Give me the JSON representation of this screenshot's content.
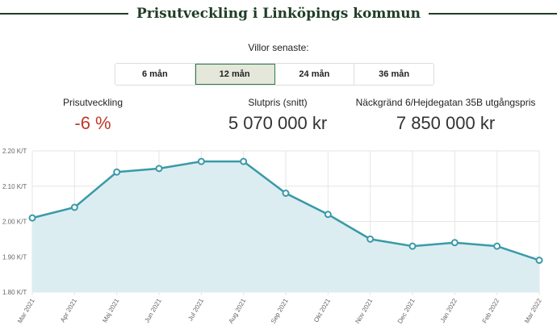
{
  "header": {
    "title": "Prisutveckling i Linköpings kommun"
  },
  "filter": {
    "label": "Villor senaste:",
    "tabs": [
      {
        "label": "6 mån",
        "active": false
      },
      {
        "label": "12 mån",
        "active": true
      },
      {
        "label": "24 mån",
        "active": false
      },
      {
        "label": "36 mån",
        "active": false
      }
    ]
  },
  "stats": [
    {
      "label": "Prisutveckling",
      "value": "-6 %"
    },
    {
      "label": "Slutpris (snitt)",
      "value": "5 070 000 kr"
    },
    {
      "label": "Näckgränd 6/Hejdegatan 35B utgångspris",
      "value": "7 850 000 kr"
    }
  ],
  "colors": {
    "line": "#3a9aa8",
    "fill": "#dcedf1",
    "negative": "#c0392b",
    "brand": "#1f3d26"
  },
  "chart_data": {
    "type": "area",
    "categories": [
      "Mar 2021",
      "Apr 2021",
      "Maj 2021",
      "Jun 2021",
      "Jul 2021",
      "Aug 2021",
      "Sep 2021",
      "Okt 2021",
      "Nov 2021",
      "Dec 2021",
      "Jan 2022",
      "Feb 2022",
      "Mar 2022"
    ],
    "values": [
      2.01,
      2.04,
      2.14,
      2.15,
      2.17,
      2.17,
      2.08,
      2.02,
      1.95,
      1.93,
      1.94,
      1.93,
      1.89
    ],
    "ylim": [
      1.8,
      2.2
    ],
    "yticks": [
      "1.80 K/T",
      "1.90 K/T",
      "2.00 K/T",
      "2.10 K/T",
      "2.20 K/T"
    ],
    "grid": true
  }
}
